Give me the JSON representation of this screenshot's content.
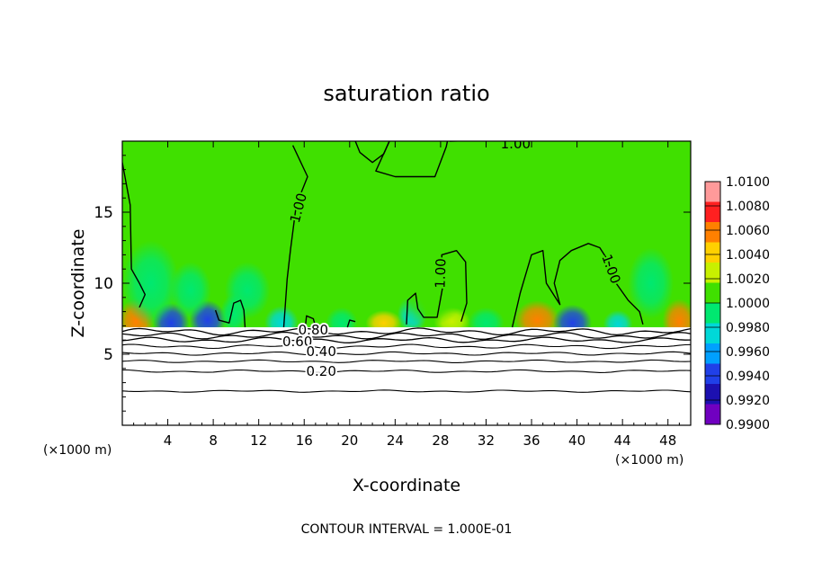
{
  "chart_data": {
    "type": "heatmap",
    "title": "saturation ratio",
    "xlabel": "X-coordinate",
    "ylabel": "Z-coordinate",
    "x_units": "(×1000 m)",
    "x_units_right": "(×1000 m)",
    "xlim": [
      0,
      50
    ],
    "ylim": [
      0,
      20
    ],
    "xticks": [
      4,
      8,
      12,
      16,
      20,
      24,
      28,
      32,
      36,
      40,
      44,
      48
    ],
    "yticks": [
      5,
      10,
      15
    ],
    "footer": "CONTOUR INTERVAL = 1.000E-01",
    "colorbar": {
      "levels": [
        "1.0100",
        "1.0080",
        "1.0060",
        "1.0040",
        "1.0020",
        "1.0000",
        "0.9980",
        "0.9960",
        "0.9940",
        "0.9920",
        "0.9900"
      ],
      "colors": [
        "#ff9a9a",
        "#ff2020",
        "#ff8000",
        "#ffd000",
        "#c8f000",
        "#40e000",
        "#00e870",
        "#00d8d8",
        "#00a0ff",
        "#2040e8",
        "#1c10b0",
        "#7000c0"
      ]
    },
    "background_value": 1.0,
    "contour_labels": [
      {
        "text": "1.00",
        "x": 15.5,
        "z": 15.3,
        "angle": -75
      },
      {
        "text": "1.00",
        "x": 34.6,
        "z": 19.8,
        "angle": 0
      },
      {
        "text": "1.00",
        "x": 28.0,
        "z": 10.7,
        "angle": -88
      },
      {
        "text": "1.00",
        "x": 43.0,
        "z": 11.0,
        "angle": 70
      },
      {
        "text": "0.80",
        "x": 16.8,
        "z": 6.7,
        "angle": 0
      },
      {
        "text": "0.60",
        "x": 15.4,
        "z": 5.9,
        "angle": 0
      },
      {
        "text": "0.40",
        "x": 17.5,
        "z": 5.2,
        "angle": 0
      },
      {
        "text": "0.20",
        "x": 17.5,
        "z": 3.8,
        "angle": 0
      }
    ],
    "hotspots": [
      {
        "x": 1.2,
        "z": 7.3,
        "sx": 1.6,
        "sz": 1.6,
        "value": 1.007
      },
      {
        "x": 4.3,
        "z": 7.2,
        "sx": 1.6,
        "sz": 1.4,
        "value": 0.992
      },
      {
        "x": 7.5,
        "z": 7.4,
        "sx": 1.6,
        "sz": 1.4,
        "value": 0.993
      },
      {
        "x": 9.8,
        "z": 7.8,
        "sx": 1.2,
        "sz": 1.4,
        "value": 0.998
      },
      {
        "x": 14.0,
        "z": 7.2,
        "sx": 1.5,
        "sz": 1.2,
        "value": 0.997
      },
      {
        "x": 19.3,
        "z": 7.2,
        "sx": 1.4,
        "sz": 1.1,
        "value": 0.998
      },
      {
        "x": 23.0,
        "z": 7.2,
        "sx": 1.6,
        "sz": 0.9,
        "value": 1.004
      },
      {
        "x": 25.5,
        "z": 7.8,
        "sx": 1.3,
        "sz": 1.3,
        "value": 0.997
      },
      {
        "x": 29.0,
        "z": 7.3,
        "sx": 1.6,
        "sz": 1.0,
        "value": 1.003
      },
      {
        "x": 32.0,
        "z": 7.2,
        "sx": 1.6,
        "sz": 1.1,
        "value": 0.998
      },
      {
        "x": 36.5,
        "z": 7.4,
        "sx": 2.0,
        "sz": 1.4,
        "value": 1.007
      },
      {
        "x": 39.6,
        "z": 7.2,
        "sx": 1.7,
        "sz": 1.3,
        "value": 0.992
      },
      {
        "x": 43.6,
        "z": 7.1,
        "sx": 1.3,
        "sz": 1.0,
        "value": 0.997
      },
      {
        "x": 49.0,
        "z": 7.3,
        "sx": 1.5,
        "sz": 1.6,
        "value": 1.007
      },
      {
        "x": 6.0,
        "z": 9.5,
        "sx": 1.8,
        "sz": 2.0,
        "value": 0.998
      },
      {
        "x": 2.5,
        "z": 10.0,
        "sx": 2.5,
        "sz": 3.0,
        "value": 0.9985
      },
      {
        "x": 11.0,
        "z": 9.5,
        "sx": 2.0,
        "sz": 2.0,
        "value": 0.9985
      },
      {
        "x": 27.0,
        "z": 9.0,
        "sx": 3.0,
        "sz": 2.0,
        "value": 1.0008
      },
      {
        "x": 46.5,
        "z": 10.0,
        "sx": 2.0,
        "sz": 2.5,
        "value": 0.9988
      }
    ],
    "contour_lines_below": [
      {
        "level": "0.80",
        "z": 6.6,
        "amp": 0.25
      },
      {
        "level": "0.70",
        "z": 6.3,
        "amp": 0.25
      },
      {
        "level": "0.60",
        "z": 6.0,
        "amp": 0.2
      },
      {
        "level": "0.50",
        "z": 5.55,
        "amp": 0.15
      },
      {
        "level": "0.40",
        "z": 5.05,
        "amp": 0.12
      },
      {
        "level": "0.30",
        "z": 4.5,
        "amp": 0.1
      },
      {
        "level": "0.20",
        "z": 3.8,
        "amp": 0.1
      },
      {
        "level": "0.10",
        "z": 2.4,
        "amp": 0.08
      }
    ],
    "contour_lines_one": [
      [
        [
          0,
          18.5
        ],
        [
          0.7,
          15.5
        ],
        [
          0.8,
          11
        ],
        [
          1.5,
          10
        ],
        [
          2,
          9.2
        ],
        [
          1.5,
          8.3
        ]
      ],
      [
        [
          14.2,
          6.9
        ],
        [
          14.5,
          10.3
        ],
        [
          14.8,
          12.4
        ],
        [
          15.3,
          15.5
        ],
        [
          16.3,
          17.5
        ],
        [
          15,
          19.7
        ]
      ],
      [
        [
          20.5,
          20
        ],
        [
          20.9,
          19.2
        ],
        [
          22,
          18.5
        ],
        [
          23,
          19.1
        ],
        [
          23.5,
          20
        ]
      ],
      [
        [
          23.5,
          20
        ],
        [
          22.3,
          17.9
        ],
        [
          24,
          17.5
        ],
        [
          27.5,
          17.5
        ],
        [
          28.5,
          19.6
        ],
        [
          28.6,
          20
        ]
      ],
      [
        [
          28.8,
          20
        ],
        [
          36,
          20.1
        ],
        [
          50,
          20.1
        ]
      ],
      [
        [
          25,
          7.1
        ],
        [
          25.1,
          8.8
        ],
        [
          25.8,
          9.3
        ],
        [
          26,
          8.2
        ],
        [
          26.5,
          7.6
        ],
        [
          27.7,
          7.6
        ],
        [
          28.2,
          9.8
        ],
        [
          28.1,
          12
        ],
        [
          29.4,
          12.3
        ],
        [
          30.2,
          11.5
        ],
        [
          30.3,
          8.6
        ],
        [
          29.8,
          7.3
        ]
      ],
      [
        [
          34.3,
          6.9
        ],
        [
          35,
          9.3
        ],
        [
          36,
          12
        ],
        [
          37,
          12.3
        ],
        [
          37.3,
          10
        ],
        [
          38.5,
          8.5
        ],
        [
          38,
          10
        ],
        [
          38.5,
          11.6
        ],
        [
          39.5,
          12.3
        ],
        [
          41,
          12.8
        ],
        [
          42,
          12.5
        ],
        [
          42.8,
          11.5
        ],
        [
          43,
          10.5
        ],
        [
          44.5,
          8.8
        ],
        [
          45.5,
          8
        ],
        [
          45.8,
          7.1
        ]
      ],
      [
        [
          10.8,
          6.9
        ],
        [
          10.7,
          8.1
        ],
        [
          10.4,
          8.8
        ],
        [
          9.8,
          8.6
        ],
        [
          9.4,
          7.2
        ],
        [
          8.5,
          7.4
        ],
        [
          8.2,
          8.1
        ]
      ],
      [
        [
          16.1,
          6.9
        ],
        [
          16.2,
          7.7
        ],
        [
          16.8,
          7.5
        ],
        [
          17,
          6.9
        ]
      ],
      [
        [
          19.8,
          6.9
        ],
        [
          20,
          7.4
        ],
        [
          20.5,
          7.3
        ]
      ]
    ]
  }
}
